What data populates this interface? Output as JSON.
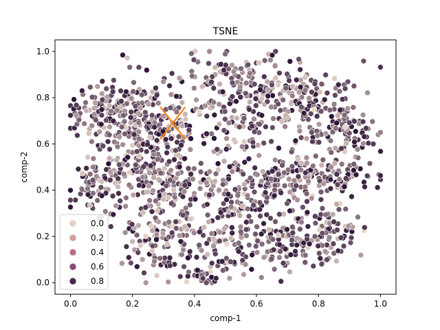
{
  "chart_data": {
    "type": "scatter",
    "title": "TSNE",
    "xlabel": "comp-1",
    "ylabel": "comp-2",
    "xlim": [
      -0.05,
      1.05
    ],
    "ylim": [
      -0.05,
      1.05
    ],
    "xticks": [
      "0.0",
      "0.2",
      "0.4",
      "0.6",
      "0.8",
      "1.0"
    ],
    "yticks": [
      "0.0",
      "0.2",
      "0.4",
      "0.6",
      "0.8",
      "1.0"
    ],
    "grid": false,
    "legend": {
      "placement": "lower-left",
      "entries": [
        {
          "label": "0.0",
          "color": "#e8cfc4"
        },
        {
          "label": "0.2",
          "color": "#d39f9f"
        },
        {
          "label": "0.4",
          "color": "#b77289"
        },
        {
          "label": "0.6",
          "color": "#8a4a7c"
        },
        {
          "label": "0.8",
          "color": "#4a2650"
        }
      ]
    },
    "hue_colors": {
      "low": "#eed9cd",
      "high": "#2a1235"
    },
    "marker": {
      "type": "x",
      "color": "#ff7f0e",
      "x": 0.33,
      "y": 0.69
    },
    "clusters": [
      {
        "cx": 0.15,
        "cy": 0.74,
        "sx": 0.08,
        "sy": 0.08,
        "n": 170
      },
      {
        "cx": 0.3,
        "cy": 0.67,
        "sx": 0.08,
        "sy": 0.09,
        "n": 160
      },
      {
        "cx": 0.48,
        "cy": 0.88,
        "sx": 0.08,
        "sy": 0.06,
        "n": 70
      },
      {
        "cx": 0.55,
        "cy": 0.7,
        "sx": 0.07,
        "sy": 0.08,
        "n": 90
      },
      {
        "cx": 0.72,
        "cy": 0.82,
        "sx": 0.09,
        "sy": 0.07,
        "n": 160
      },
      {
        "cx": 0.87,
        "cy": 0.65,
        "sx": 0.07,
        "sy": 0.06,
        "n": 100
      },
      {
        "cx": 0.08,
        "cy": 0.42,
        "sx": 0.05,
        "sy": 0.07,
        "n": 70
      },
      {
        "cx": 0.22,
        "cy": 0.48,
        "sx": 0.07,
        "sy": 0.07,
        "n": 100
      },
      {
        "cx": 0.38,
        "cy": 0.42,
        "sx": 0.07,
        "sy": 0.07,
        "n": 80
      },
      {
        "cx": 0.55,
        "cy": 0.38,
        "sx": 0.07,
        "sy": 0.06,
        "n": 90
      },
      {
        "cx": 0.7,
        "cy": 0.45,
        "sx": 0.08,
        "sy": 0.05,
        "n": 100
      },
      {
        "cx": 0.88,
        "cy": 0.45,
        "sx": 0.05,
        "sy": 0.05,
        "n": 60
      },
      {
        "cx": 0.28,
        "cy": 0.2,
        "sx": 0.06,
        "sy": 0.08,
        "n": 110
      },
      {
        "cx": 0.48,
        "cy": 0.16,
        "sx": 0.06,
        "sy": 0.07,
        "n": 80
      },
      {
        "cx": 0.67,
        "cy": 0.17,
        "sx": 0.06,
        "sy": 0.07,
        "n": 100
      },
      {
        "cx": 0.83,
        "cy": 0.22,
        "sx": 0.06,
        "sy": 0.06,
        "n": 90
      },
      {
        "cx": 0.4,
        "cy": 0.03,
        "sx": 0.05,
        "sy": 0.02,
        "n": 25
      },
      {
        "cx": 0.17,
        "cy": 0.99,
        "sx": 0.005,
        "sy": 0.005,
        "n": 1
      }
    ]
  }
}
